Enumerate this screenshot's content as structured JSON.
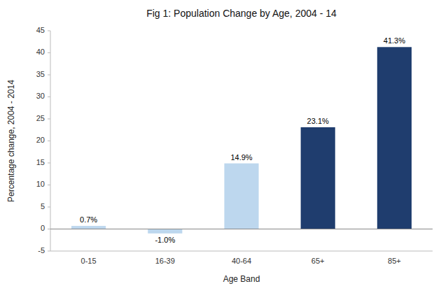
{
  "chart_data": {
    "type": "bar",
    "title": "Fig 1: Population Change by Age, 2004 - 14",
    "x_label": "Age Band",
    "y_label": "Percentage change, 2004 - 2014",
    "categories": [
      "0-15",
      "16-39",
      "40-64",
      "65+",
      "85+"
    ],
    "values": [
      0.7,
      -1.0,
      14.9,
      23.1,
      41.3
    ],
    "value_labels": [
      "0.7%",
      "-1.0%",
      "14.9%",
      "23.1%",
      "41.3%"
    ],
    "colors": [
      "#bdd7ee",
      "#bdd7ee",
      "#bdd7ee",
      "#1f3d6e",
      "#1f3d6e"
    ],
    "ylim": [
      -5,
      45
    ],
    "yticks": [
      -5,
      0,
      5,
      10,
      15,
      20,
      25,
      30,
      35,
      40,
      45
    ],
    "grid": false,
    "data_labels": true
  }
}
